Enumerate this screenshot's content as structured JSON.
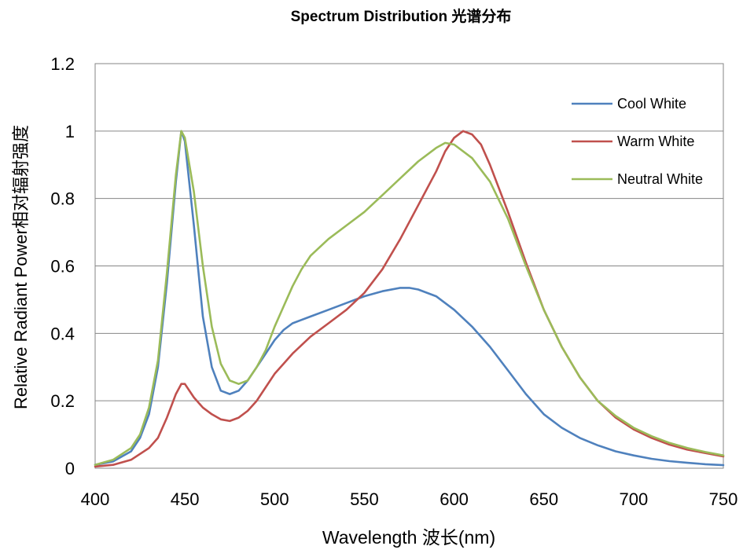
{
  "chart_data": {
    "type": "line",
    "title": "Spectrum Distribution 光谱分布",
    "xlabel": "Wavelength  波长(nm)",
    "ylabel": "Relative Radiant Power相对辐射强度",
    "xlim": [
      400,
      750
    ],
    "ylim": [
      0,
      1.2
    ],
    "x_ticks": [
      "400",
      "450",
      "500",
      "550",
      "600",
      "650",
      "700",
      "750"
    ],
    "y_ticks": [
      "0",
      "0.2",
      "0.4",
      "0.6",
      "0.8",
      "1",
      "1.2"
    ],
    "grid": "horizontal",
    "legend_position": "top-right",
    "series": [
      {
        "name": "Cool White",
        "color": "#4F81BD",
        "points": [
          [
            400,
            0.01
          ],
          [
            410,
            0.02
          ],
          [
            420,
            0.05
          ],
          [
            425,
            0.09
          ],
          [
            430,
            0.16
          ],
          [
            435,
            0.3
          ],
          [
            440,
            0.55
          ],
          [
            445,
            0.85
          ],
          [
            448,
            1.0
          ],
          [
            450,
            0.97
          ],
          [
            455,
            0.72
          ],
          [
            460,
            0.45
          ],
          [
            465,
            0.3
          ],
          [
            470,
            0.23
          ],
          [
            475,
            0.22
          ],
          [
            480,
            0.23
          ],
          [
            485,
            0.26
          ],
          [
            490,
            0.3
          ],
          [
            495,
            0.34
          ],
          [
            500,
            0.38
          ],
          [
            505,
            0.41
          ],
          [
            510,
            0.43
          ],
          [
            520,
            0.45
          ],
          [
            530,
            0.47
          ],
          [
            540,
            0.49
          ],
          [
            550,
            0.51
          ],
          [
            560,
            0.525
          ],
          [
            570,
            0.535
          ],
          [
            575,
            0.535
          ],
          [
            580,
            0.53
          ],
          [
            590,
            0.51
          ],
          [
            600,
            0.47
          ],
          [
            610,
            0.42
          ],
          [
            620,
            0.36
          ],
          [
            630,
            0.29
          ],
          [
            640,
            0.22
          ],
          [
            650,
            0.16
          ],
          [
            660,
            0.12
          ],
          [
            670,
            0.09
          ],
          [
            680,
            0.068
          ],
          [
            690,
            0.05
          ],
          [
            700,
            0.038
          ],
          [
            710,
            0.028
          ],
          [
            720,
            0.021
          ],
          [
            730,
            0.016
          ],
          [
            740,
            0.012
          ],
          [
            750,
            0.009
          ]
        ]
      },
      {
        "name": "Warm White",
        "color": "#C0504D",
        "points": [
          [
            400,
            0.005
          ],
          [
            410,
            0.01
          ],
          [
            420,
            0.025
          ],
          [
            430,
            0.06
          ],
          [
            435,
            0.09
          ],
          [
            440,
            0.15
          ],
          [
            445,
            0.22
          ],
          [
            448,
            0.25
          ],
          [
            450,
            0.25
          ],
          [
            455,
            0.21
          ],
          [
            460,
            0.18
          ],
          [
            465,
            0.16
          ],
          [
            470,
            0.145
          ],
          [
            475,
            0.14
          ],
          [
            480,
            0.15
          ],
          [
            485,
            0.17
          ],
          [
            490,
            0.2
          ],
          [
            495,
            0.24
          ],
          [
            500,
            0.28
          ],
          [
            505,
            0.31
          ],
          [
            510,
            0.34
          ],
          [
            520,
            0.39
          ],
          [
            530,
            0.43
          ],
          [
            540,
            0.47
          ],
          [
            550,
            0.52
          ],
          [
            560,
            0.59
          ],
          [
            570,
            0.68
          ],
          [
            580,
            0.78
          ],
          [
            590,
            0.88
          ],
          [
            595,
            0.94
          ],
          [
            600,
            0.98
          ],
          [
            605,
            1.0
          ],
          [
            610,
            0.99
          ],
          [
            615,
            0.96
          ],
          [
            620,
            0.9
          ],
          [
            630,
            0.76
          ],
          [
            640,
            0.61
          ],
          [
            650,
            0.47
          ],
          [
            660,
            0.36
          ],
          [
            670,
            0.27
          ],
          [
            680,
            0.2
          ],
          [
            690,
            0.15
          ],
          [
            700,
            0.115
          ],
          [
            710,
            0.09
          ],
          [
            720,
            0.07
          ],
          [
            730,
            0.055
          ],
          [
            740,
            0.045
          ],
          [
            750,
            0.035
          ]
        ]
      },
      {
        "name": "Neutral White",
        "color": "#9BBB59",
        "points": [
          [
            400,
            0.01
          ],
          [
            410,
            0.025
          ],
          [
            420,
            0.06
          ],
          [
            425,
            0.1
          ],
          [
            430,
            0.18
          ],
          [
            435,
            0.32
          ],
          [
            440,
            0.58
          ],
          [
            445,
            0.87
          ],
          [
            448,
            1.0
          ],
          [
            450,
            0.98
          ],
          [
            455,
            0.82
          ],
          [
            460,
            0.6
          ],
          [
            465,
            0.42
          ],
          [
            470,
            0.31
          ],
          [
            475,
            0.26
          ],
          [
            480,
            0.25
          ],
          [
            485,
            0.26
          ],
          [
            490,
            0.3
          ],
          [
            495,
            0.35
          ],
          [
            500,
            0.42
          ],
          [
            505,
            0.48
          ],
          [
            510,
            0.54
          ],
          [
            515,
            0.59
          ],
          [
            520,
            0.63
          ],
          [
            530,
            0.68
          ],
          [
            540,
            0.72
          ],
          [
            550,
            0.76
          ],
          [
            560,
            0.81
          ],
          [
            570,
            0.86
          ],
          [
            580,
            0.91
          ],
          [
            590,
            0.95
          ],
          [
            595,
            0.965
          ],
          [
            600,
            0.96
          ],
          [
            610,
            0.92
          ],
          [
            620,
            0.85
          ],
          [
            630,
            0.74
          ],
          [
            640,
            0.6
          ],
          [
            650,
            0.47
          ],
          [
            660,
            0.36
          ],
          [
            670,
            0.27
          ],
          [
            680,
            0.2
          ],
          [
            690,
            0.155
          ],
          [
            700,
            0.12
          ],
          [
            710,
            0.095
          ],
          [
            720,
            0.075
          ],
          [
            730,
            0.06
          ],
          [
            740,
            0.048
          ],
          [
            750,
            0.038
          ]
        ]
      }
    ]
  }
}
